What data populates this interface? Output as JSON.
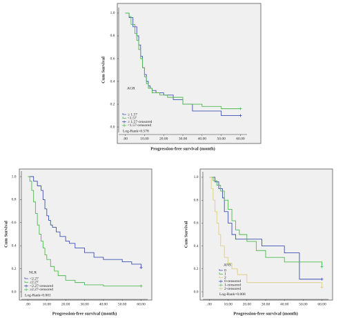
{
  "chart_data": [
    {
      "type": "step",
      "title": "AGR",
      "xlabel": "Progression-free survival (month)",
      "ylabel": "Cum Survival",
      "note": "Log-Rank=0.578",
      "xlim": [
        -2,
        62
      ],
      "ylim": [
        -0.03,
        1.03
      ],
      "xticks": [
        {
          "value": 0,
          "label": ".00"
        },
        {
          "value": 10,
          "label": "10.00"
        },
        {
          "value": 20,
          "label": "20.00"
        },
        {
          "value": 30,
          "label": "30.00"
        },
        {
          "value": 40,
          "label": "40.00"
        },
        {
          "value": 50,
          "label": "50.00"
        },
        {
          "value": 60,
          "label": "60.00"
        }
      ],
      "yticks": [
        {
          "value": 0,
          "label": "0.0"
        },
        0.2,
        0.4,
        0.6,
        0.8,
        {
          "value": 1,
          "label": "1.0"
        }
      ],
      "series": [
        {
          "name": "≥ 1.57",
          "censored_name": "≥ 1.57-censored",
          "color": "#3a4fb0",
          "x": [
            0,
            2,
            4,
            6,
            7,
            8,
            9,
            10,
            11,
            12,
            13,
            14,
            16,
            20,
            25,
            30,
            35,
            50,
            60
          ],
          "values": [
            1,
            0.96,
            0.88,
            0.8,
            0.72,
            0.62,
            0.52,
            0.46,
            0.4,
            0.36,
            0.34,
            0.32,
            0.3,
            0.28,
            0.24,
            0.2,
            0.14,
            0.1,
            0.1
          ]
        },
        {
          "name": "<1.57",
          "censored_name": "<1.57-censored",
          "color": "#4cb84c",
          "x": [
            0,
            2,
            3,
            5,
            6,
            7,
            8,
            9,
            10,
            11,
            12,
            14,
            18,
            22,
            30,
            40,
            50,
            60
          ],
          "values": [
            1,
            0.97,
            0.9,
            0.82,
            0.76,
            0.68,
            0.6,
            0.52,
            0.44,
            0.38,
            0.34,
            0.3,
            0.28,
            0.26,
            0.2,
            0.18,
            0.16,
            0.16
          ]
        }
      ]
    },
    {
      "type": "step",
      "title": "NLR",
      "xlabel": "Progression-free survival (month)",
      "ylabel": "Cum Survival",
      "note": "Log-Rank=0.001",
      "xlim": [
        -2,
        62
      ],
      "ylim": [
        -0.03,
        1.03
      ],
      "xticks": [
        {
          "value": 0,
          "label": ".00"
        },
        {
          "value": 10,
          "label": "10.00"
        },
        {
          "value": 20,
          "label": "20.00"
        },
        {
          "value": 30,
          "label": "30.00"
        },
        {
          "value": 40,
          "label": "40.00"
        },
        {
          "value": 50,
          "label": "50.00"
        },
        {
          "value": 60,
          "label": "60.00"
        }
      ],
      "yticks": [
        {
          "value": 0,
          "label": "0.0"
        },
        0.2,
        0.4,
        0.6,
        0.8,
        {
          "value": 1,
          "label": "1.0"
        }
      ],
      "series": [
        {
          "name": "<2.27",
          "censored_name": "<2.27-censored",
          "color": "#3a4fb0",
          "x": [
            0,
            3,
            5,
            7,
            8,
            9,
            10,
            11,
            12,
            13,
            15,
            17,
            20,
            22,
            25,
            30,
            35,
            40,
            50,
            55,
            60
          ],
          "values": [
            1,
            0.96,
            0.92,
            0.88,
            0.8,
            0.72,
            0.66,
            0.62,
            0.58,
            0.56,
            0.52,
            0.48,
            0.44,
            0.42,
            0.38,
            0.34,
            0.3,
            0.28,
            0.26,
            0.24,
            0.21
          ]
        },
        {
          "name": "≥2.27",
          "censored_name": "≥2.27-censored",
          "color": "#4cb84c",
          "x": [
            0,
            1,
            2,
            3,
            4,
            5,
            6,
            7,
            8,
            9,
            10,
            12,
            14,
            16,
            20,
            25,
            30,
            40,
            60
          ],
          "values": [
            1,
            0.96,
            0.88,
            0.78,
            0.68,
            0.58,
            0.5,
            0.44,
            0.38,
            0.32,
            0.28,
            0.22,
            0.18,
            0.14,
            0.1,
            0.08,
            0.06,
            0.05,
            0.05
          ]
        }
      ]
    },
    {
      "type": "step",
      "title": "ANS",
      "xlabel": "Progression-free survival (month)",
      "ylabel": "Cum Survival",
      "note": "Log-Rank=0.008",
      "xlim": [
        -2,
        62
      ],
      "ylim": [
        -0.03,
        1.03
      ],
      "xticks": [
        {
          "value": 0,
          "label": ".00"
        },
        {
          "value": 10,
          "label": "10.00"
        },
        {
          "value": 20,
          "label": "20.00"
        },
        {
          "value": 30,
          "label": "30.00"
        },
        {
          "value": 40,
          "label": "40.00"
        },
        {
          "value": 50,
          "label": "50.00"
        },
        {
          "value": 60,
          "label": "60.00"
        }
      ],
      "yticks": [
        {
          "value": 0,
          "label": "0.0"
        },
        0.2,
        0.4,
        0.6,
        0.8,
        {
          "value": 1,
          "label": "1.0"
        }
      ],
      "series": [
        {
          "name": "0",
          "censored_name": "0-censored",
          "color": "#3a4fb0",
          "x": [
            0,
            3,
            5,
            7,
            8,
            10,
            12,
            14,
            20,
            28,
            40,
            48,
            60
          ],
          "values": [
            1,
            0.96,
            0.9,
            0.82,
            0.7,
            0.6,
            0.5,
            0.46,
            0.46,
            0.4,
            0.34,
            0.11,
            0.11
          ]
        },
        {
          "name": "1",
          "censored_name": "1-censored",
          "color": "#4cb84c",
          "x": [
            0,
            2,
            4,
            6,
            8,
            10,
            12,
            14,
            16,
            20,
            25,
            30,
            40,
            60
          ],
          "values": [
            1,
            0.97,
            0.93,
            0.88,
            0.8,
            0.72,
            0.62,
            0.54,
            0.5,
            0.44,
            0.36,
            0.3,
            0.26,
            0.22
          ]
        },
        {
          "name": "2",
          "censored_name": "2-censored",
          "color": "#e0cc80",
          "x": [
            0,
            1,
            2,
            3,
            4,
            5,
            6,
            8,
            10,
            12,
            15,
            20,
            60
          ],
          "values": [
            1,
            0.9,
            0.8,
            0.7,
            0.6,
            0.5,
            0.4,
            0.3,
            0.25,
            0.2,
            0.15,
            0.08,
            0.04
          ]
        }
      ]
    }
  ]
}
